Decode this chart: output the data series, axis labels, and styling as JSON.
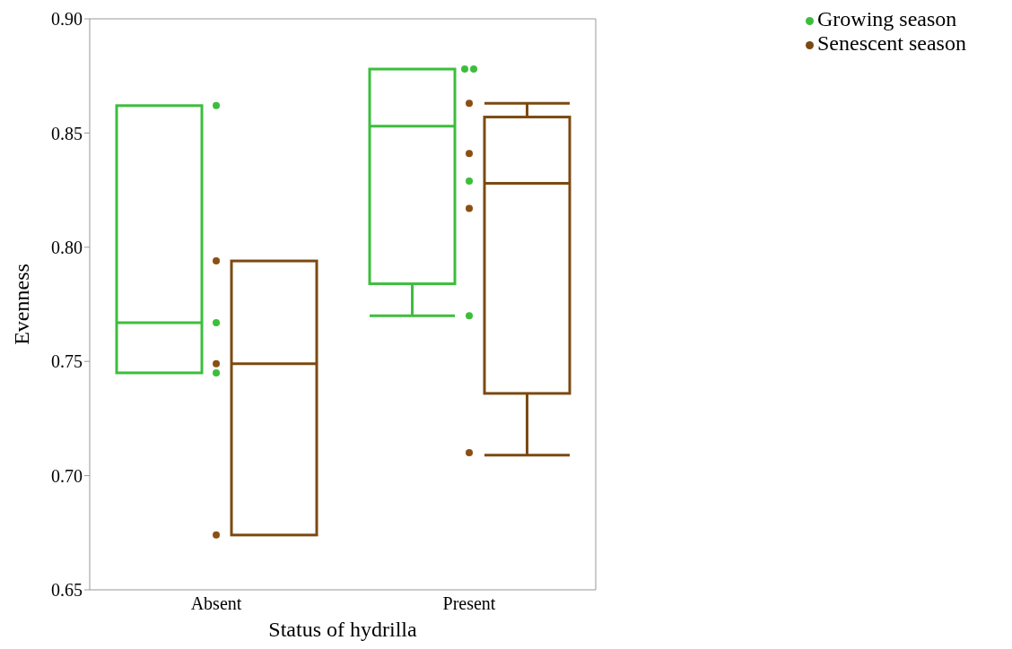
{
  "chart_data": {
    "type": "box",
    "xlabel": "Status of hydrilla",
    "ylabel": "Evenness",
    "categories": [
      "Absent",
      "Present"
    ],
    "ylim": [
      0.65,
      0.9
    ],
    "yticks": [
      0.65,
      {
        "value": 0.7,
        "label": "0.70"
      },
      0.75,
      {
        "value": 0.8,
        "label": "0.80"
      },
      0.85,
      {
        "value": 0.9,
        "label": "0.90"
      }
    ],
    "legend": "top right",
    "marker": "circle",
    "series": [
      {
        "name": "Growing season",
        "color": "#3cbe3c",
        "boxes": [
          {
            "low": 0.745,
            "q1": 0.745,
            "median": 0.767,
            "q3": 0.862,
            "high": 0.862
          },
          {
            "low": 0.77,
            "q1": 0.784,
            "median": 0.853,
            "q3": 0.878,
            "high": 0.878
          }
        ]
      },
      {
        "name": "Senescent season",
        "color": "#7b4a12",
        "boxes": [
          {
            "low": 0.674,
            "q1": 0.674,
            "median": 0.749,
            "q3": 0.794,
            "high": 0.794
          },
          {
            "low": 0.709,
            "q1": 0.736,
            "median": 0.828,
            "q3": 0.857,
            "high": 0.863
          }
        ]
      },
      {
        "type": "scatter",
        "color": "#3cbe3c",
        "x": [
          "Absent",
          "Absent",
          "Absent",
          "Present",
          "Present",
          "Present",
          "Present"
        ],
        "values": [
          0.862,
          0.767,
          0.745,
          0.878,
          0.878,
          0.829,
          0.77
        ]
      },
      {
        "type": "scatter",
        "color": "#8b4f14",
        "x": [
          "Absent",
          "Absent",
          "Absent",
          "Present",
          "Present",
          "Present",
          "Present"
        ],
        "values": [
          0.794,
          0.749,
          0.674,
          0.863,
          0.841,
          0.817,
          0.71
        ]
      }
    ]
  }
}
